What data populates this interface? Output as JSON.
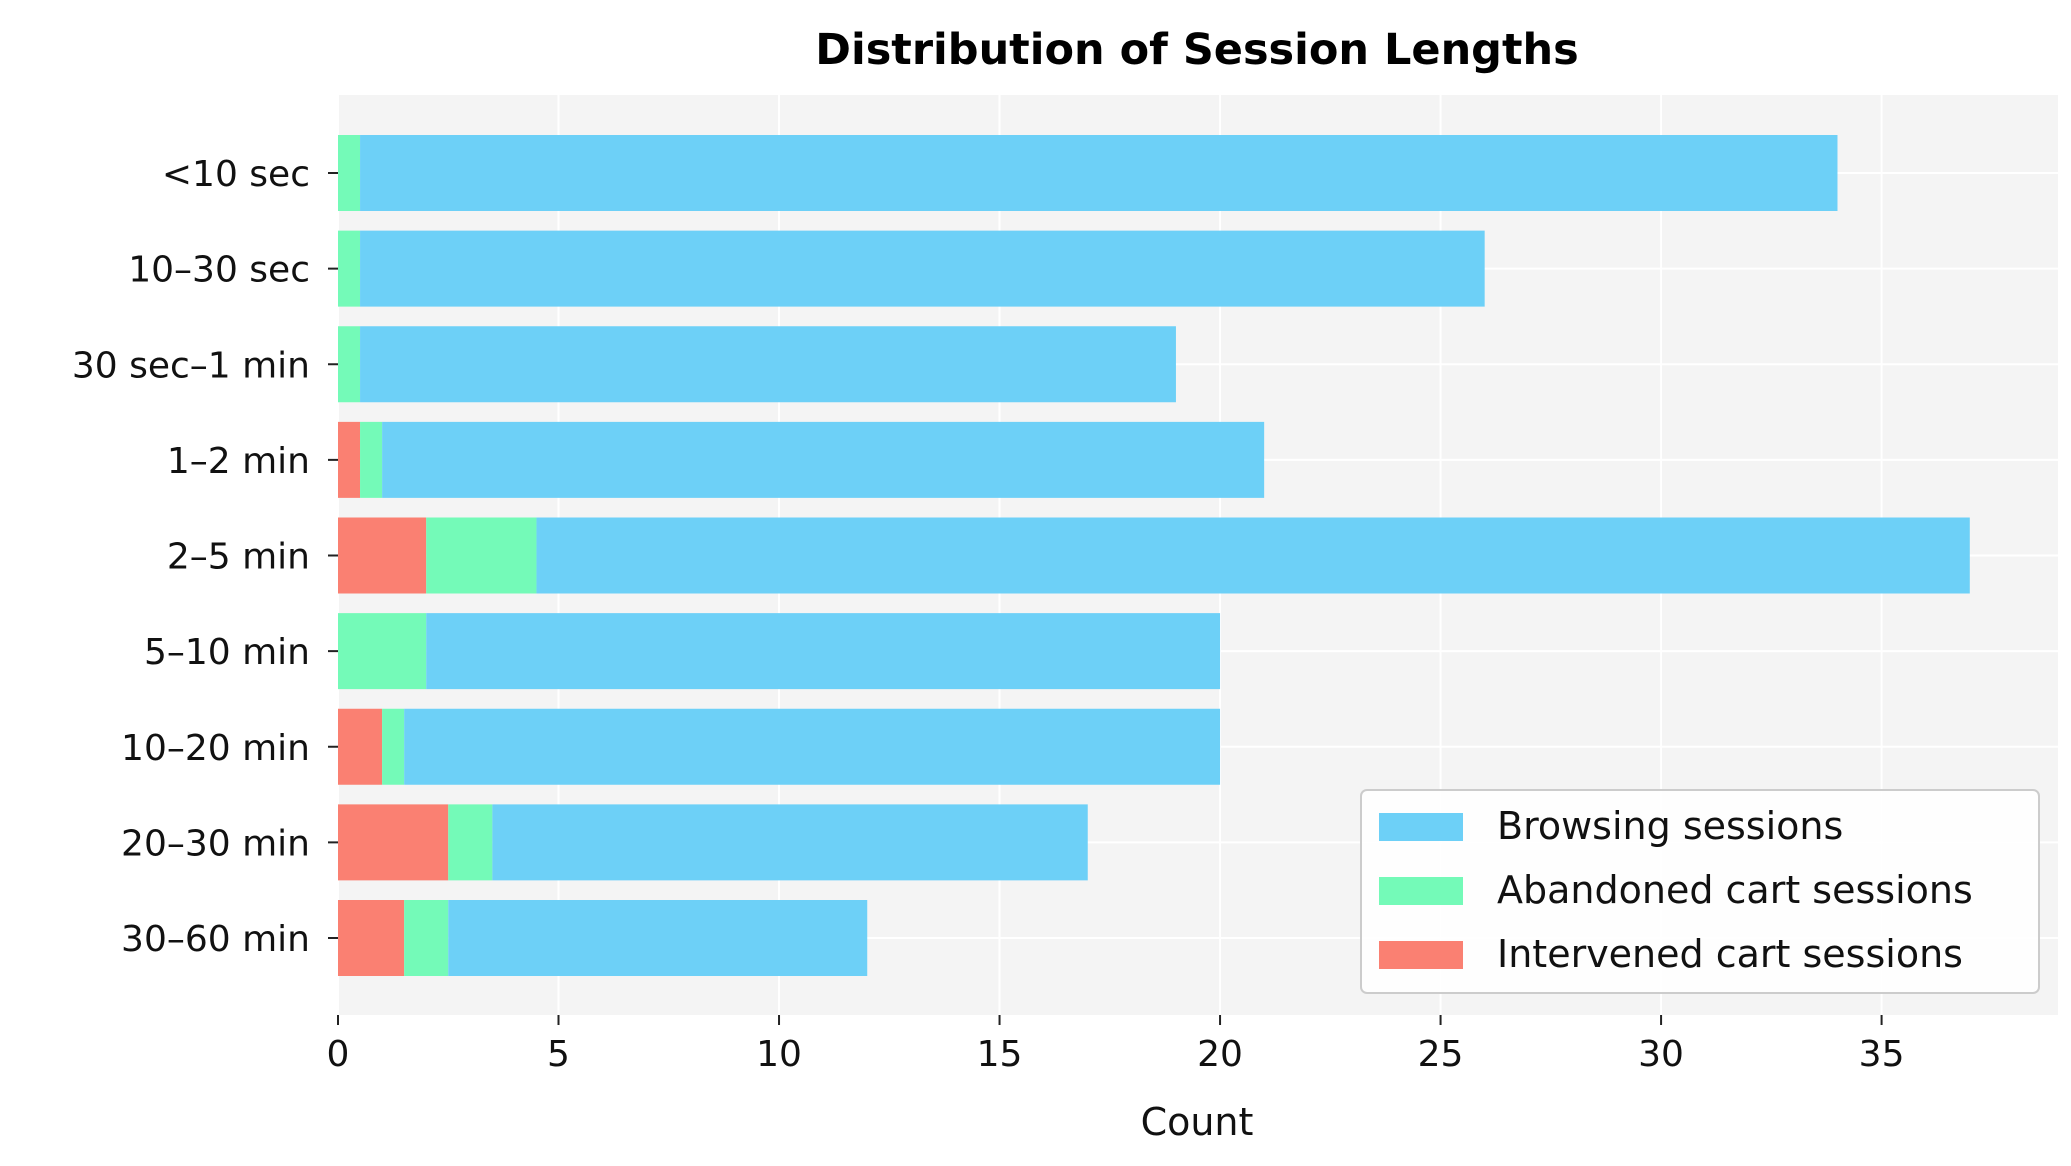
{
  "chart_data": {
    "type": "bar",
    "orientation": "horizontal",
    "stacked": true,
    "title": "Distribution of Session Lengths",
    "xlabel": "Count",
    "ylabel": "",
    "xlim": [
      0,
      39
    ],
    "xticks": [
      0,
      5,
      10,
      15,
      20,
      25,
      30,
      35
    ],
    "grid": true,
    "legend_position": "lower-right",
    "categories": [
      "<10 sec",
      "10–30 sec",
      "30 sec–1 min",
      "1–2 min",
      "2–5 min",
      "5–10 min",
      "10–20 min",
      "20–30 min",
      "30–60 min"
    ],
    "series": [
      {
        "name": "Intervened cart sessions",
        "color": "#fa8072",
        "values": [
          0,
          0,
          0,
          0.5,
          2,
          0,
          1,
          2.5,
          1.5
        ]
      },
      {
        "name": "Abandoned cart sessions",
        "color": "#74fab8",
        "values": [
          0.5,
          0.5,
          0.5,
          0.5,
          2.5,
          2,
          0.5,
          1,
          1
        ]
      },
      {
        "name": "Browsing sessions",
        "color": "#6dd0f7",
        "values": [
          33.5,
          25.5,
          18.5,
          20,
          32.5,
          18,
          18.5,
          13.5,
          9.5
        ]
      }
    ],
    "legend_order": [
      "Browsing sessions",
      "Abandoned cart sessions",
      "Intervened cart sessions"
    ],
    "plot_background": "#f4f4f4",
    "grid_color": "#ffffff"
  }
}
